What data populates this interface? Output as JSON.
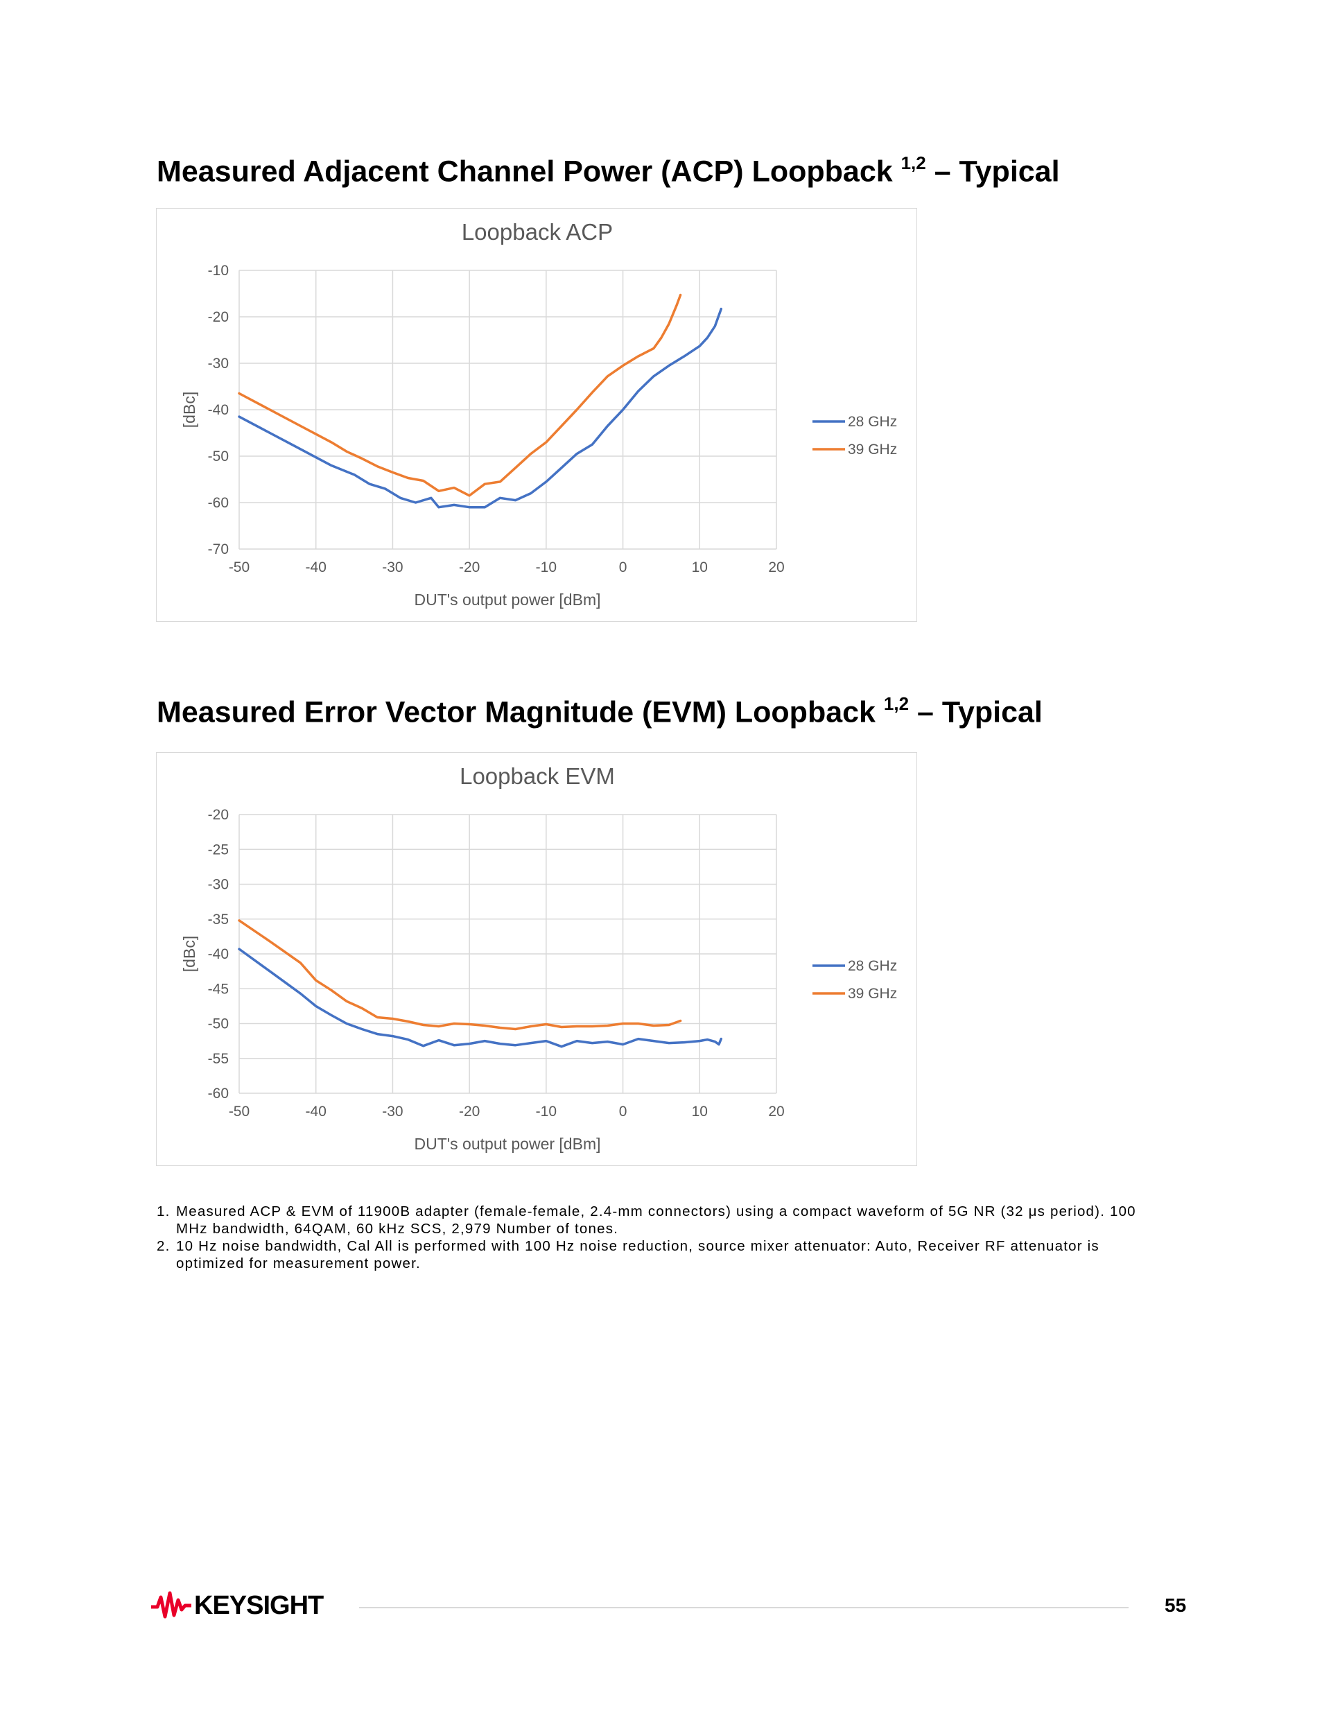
{
  "headings": {
    "acp": {
      "text": "Measured Adjacent Channel Power (ACP) Loopback ",
      "sup": "1,2",
      "suffix": " – Typical"
    },
    "evm": {
      "text": "Measured Error Vector Magnitude (EVM) Loopback ",
      "sup": "1,2",
      "suffix": " – Typical"
    }
  },
  "chart_data": [
    {
      "type": "line",
      "title": "Loopback ACP",
      "xlabel": "DUT's output power [dBm]",
      "ylabel": "[dBc]",
      "xlim": [
        -50,
        20
      ],
      "ylim": [
        -70,
        -10
      ],
      "xticks": [
        -50,
        -40,
        -30,
        -20,
        -10,
        0,
        10,
        20
      ],
      "yticks": [
        -10,
        -20,
        -30,
        -40,
        -50,
        -60,
        -70
      ],
      "grid": true,
      "legend_position": "right",
      "series": [
        {
          "name": "28 GHz",
          "color": "#4472c4",
          "x": [
            -50,
            -46,
            -42,
            -38,
            -35,
            -33,
            -31,
            -29,
            -27,
            -25,
            -24,
            -22,
            -20,
            -18,
            -16,
            -14,
            -12,
            -10,
            -8,
            -6,
            -4,
            -2,
            0,
            2,
            4,
            6,
            8,
            10,
            11,
            12,
            12.8
          ],
          "y": [
            -41.5,
            -45,
            -48.5,
            -52,
            -54,
            -56,
            -57,
            -59,
            -60,
            -59,
            -61,
            -60.5,
            -61,
            -61,
            -59,
            -59.5,
            -58,
            -55.5,
            -52.5,
            -49.5,
            -47.5,
            -43.5,
            -40,
            -36,
            -32.8,
            -30.5,
            -28.5,
            -26.3,
            -24.5,
            -22,
            -18.3
          ]
        },
        {
          "name": "39 GHz",
          "color": "#ed7d31",
          "x": [
            -50,
            -46,
            -42,
            -38,
            -36,
            -34,
            -32,
            -30,
            -28,
            -26,
            -24,
            -22,
            -20,
            -18,
            -16,
            -14,
            -12,
            -10,
            -8,
            -6,
            -4,
            -2,
            0,
            2,
            4,
            5,
            6,
            7,
            7.5
          ],
          "y": [
            -36.5,
            -40,
            -43.5,
            -47,
            -49,
            -50.5,
            -52.2,
            -53.5,
            -54.7,
            -55.3,
            -57.5,
            -56.8,
            -58.5,
            -56,
            -55.5,
            -52.5,
            -49.5,
            -47,
            -43.5,
            -40,
            -36.3,
            -32.8,
            -30.5,
            -28.5,
            -26.8,
            -24.5,
            -21.5,
            -17.5,
            -15.3
          ]
        }
      ]
    },
    {
      "type": "line",
      "title": "Loopback EVM",
      "xlabel": "DUT's output power [dBm]",
      "ylabel": "[dBc]",
      "xlim": [
        -50,
        20
      ],
      "ylim": [
        -60,
        -20
      ],
      "xticks": [
        -50,
        -40,
        -30,
        -20,
        -10,
        0,
        10,
        20
      ],
      "yticks": [
        -20,
        -25,
        -30,
        -35,
        -40,
        -45,
        -50,
        -55,
        -60
      ],
      "grid": true,
      "legend_position": "right",
      "series": [
        {
          "name": "28 GHz",
          "color": "#4472c4",
          "x": [
            -50,
            -46,
            -42,
            -40,
            -38,
            -36,
            -34,
            -32,
            -30,
            -28,
            -26,
            -24,
            -22,
            -20,
            -18,
            -16,
            -14,
            -12,
            -10,
            -8,
            -6,
            -4,
            -2,
            0,
            2,
            4,
            6,
            8,
            10,
            11,
            12,
            12.5,
            12.8
          ],
          "y": [
            -39.3,
            -42.5,
            -45.7,
            -47.5,
            -48.8,
            -50,
            -50.8,
            -51.5,
            -51.8,
            -52.3,
            -53.2,
            -52.4,
            -53.1,
            -52.9,
            -52.5,
            -52.9,
            -53.1,
            -52.8,
            -52.5,
            -53.3,
            -52.5,
            -52.8,
            -52.6,
            -53,
            -52.2,
            -52.5,
            -52.8,
            -52.7,
            -52.5,
            -52.3,
            -52.6,
            -53,
            -52.2
          ]
        },
        {
          "name": "39 GHz",
          "color": "#ed7d31",
          "x": [
            -50,
            -46,
            -42,
            -40,
            -38,
            -36,
            -34,
            -32,
            -30,
            -28,
            -26,
            -24,
            -22,
            -20,
            -18,
            -16,
            -14,
            -12,
            -10,
            -8,
            -6,
            -4,
            -2,
            0,
            2,
            4,
            6,
            7,
            7.5
          ],
          "y": [
            -35.2,
            -38.2,
            -41.3,
            -43.8,
            -45.2,
            -46.8,
            -47.8,
            -49.1,
            -49.3,
            -49.7,
            -50.2,
            -50.4,
            -50,
            -50.1,
            -50.3,
            -50.6,
            -50.8,
            -50.4,
            -50.1,
            -50.5,
            -50.4,
            -50.4,
            -50.3,
            -50,
            -50,
            -50.3,
            -50.2,
            -49.8,
            -49.6
          ]
        }
      ]
    }
  ],
  "footnotes": [
    {
      "num": "1.",
      "text": "Measured ACP & EVM of 11900B adapter (female-female, 2.4-mm connectors) using a compact waveform of 5G NR (32 μs period). 100 MHz bandwidth, 64QAM, 60 kHz SCS, 2,979 Number of tones."
    },
    {
      "num": "2.",
      "text": "10 Hz noise bandwidth, Cal All is performed with 100 Hz noise reduction, source mixer attenuator: Auto, Receiver RF attenuator is optimized for measurement power."
    }
  ],
  "footer": {
    "logo_text": "KEYSIGHT",
    "logo_color": "#e90029",
    "page_number": "55"
  }
}
